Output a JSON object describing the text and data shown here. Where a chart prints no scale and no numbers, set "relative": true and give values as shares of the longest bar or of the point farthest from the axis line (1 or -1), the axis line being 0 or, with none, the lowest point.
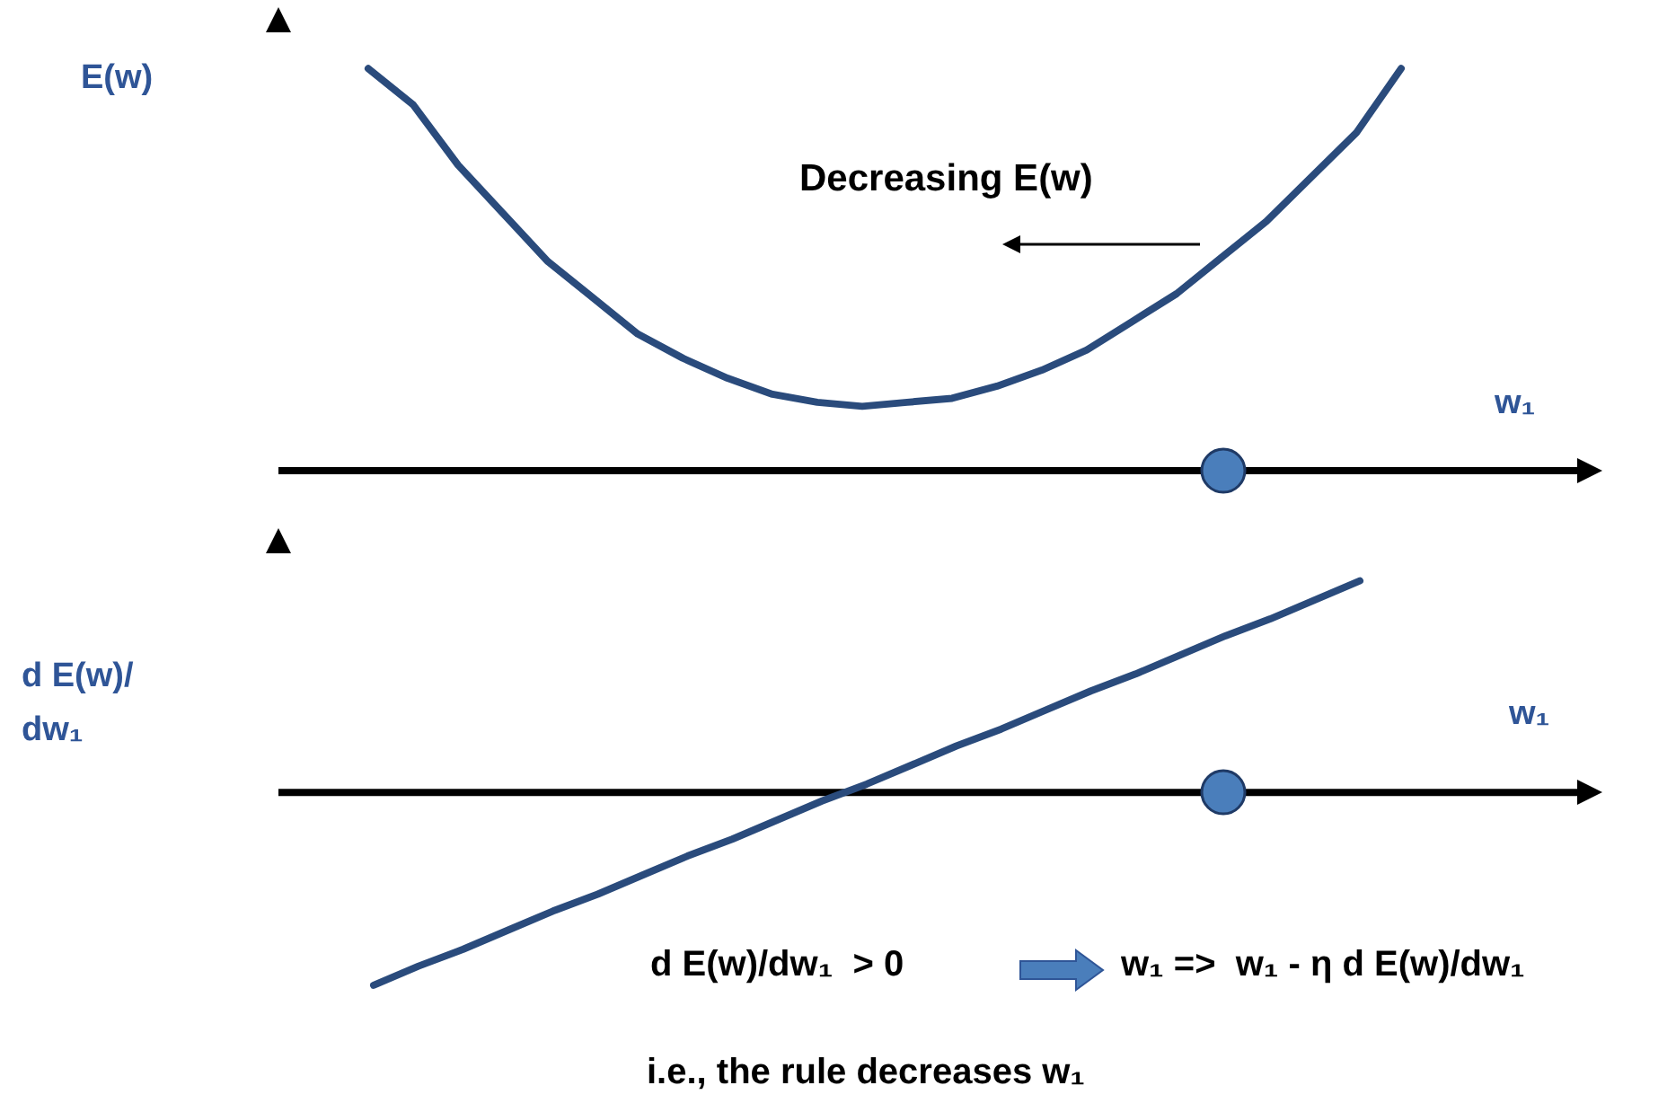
{
  "chart_data": [
    {
      "type": "line",
      "relative": true,
      "ylabel": "E(w)",
      "xlabel": "w₁",
      "annotations": [
        "Decreasing E(w)"
      ],
      "marker": "none",
      "categories": [
        null,
        null,
        null,
        null,
        null,
        null,
        null,
        null,
        null,
        null,
        null,
        null,
        null,
        null,
        null,
        null,
        null,
        null,
        null,
        null,
        null,
        null,
        null,
        null
      ],
      "series": [
        {
          "color": "#2a4b7c",
          "values": [
            1.0,
            0.91,
            0.76,
            0.64,
            0.52,
            0.43,
            0.34,
            0.28,
            0.23,
            0.19,
            0.17,
            0.16,
            0.17,
            0.18,
            0.21,
            0.25,
            0.3,
            0.37,
            0.44,
            0.53,
            0.62,
            0.73,
            0.84,
            1.0
          ]
        }
      ]
    },
    {
      "type": "line",
      "relative": true,
      "ylabel": "d E(w)/dw₁",
      "xlabel": "w₁",
      "annotations": [
        "d E(w)/dw₁  > 0",
        "w₁ =>  w₁ - η d E(w)/dw₁",
        "i.e., the rule decreases w₁"
      ],
      "marker": "none",
      "categories": [
        null,
        null,
        null,
        null,
        null,
        null,
        null,
        null,
        null,
        null,
        null,
        null,
        null,
        null,
        null,
        null,
        null,
        null,
        null,
        null,
        null,
        null,
        null
      ],
      "series": [
        {
          "color": "#2a4b7c",
          "values": [
            -0.91,
            -0.82,
            -0.74,
            -0.65,
            -0.56,
            -0.48,
            -0.39,
            -0.3,
            -0.22,
            -0.13,
            -0.04,
            0.04,
            0.13,
            0.22,
            0.3,
            0.39,
            0.48,
            0.56,
            0.65,
            0.74,
            0.82,
            0.91,
            1.0
          ]
        }
      ]
    }
  ]
}
